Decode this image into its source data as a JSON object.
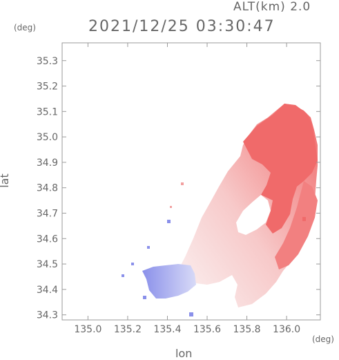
{
  "header": {
    "altitude_label": "ALT(km) 2.0",
    "timestamp": "2021/12/25 03:30:47"
  },
  "chart_data": {
    "type": "heatmap",
    "title": "2021/12/25 03:30:47",
    "xlabel": "lon",
    "ylabel": "lat",
    "x_unit": "(deg)",
    "y_unit": "(deg)",
    "xlim": [
      134.87,
      136.17
    ],
    "ylim": [
      34.28,
      35.37
    ],
    "x_ticks": [
      "135.0",
      "135.2",
      "135.4",
      "135.6",
      "135.8",
      "136.0"
    ],
    "y_ticks": [
      "34.3",
      "34.4",
      "34.5",
      "34.6",
      "34.7",
      "34.8",
      "34.9",
      "35.0",
      "35.1",
      "35.2",
      "35.3"
    ],
    "grid": false,
    "colors": {
      "positive": "#f06a6a",
      "neutral": "#f8ecec",
      "negative": "#7f86e8",
      "axis": "#999999"
    }
  }
}
